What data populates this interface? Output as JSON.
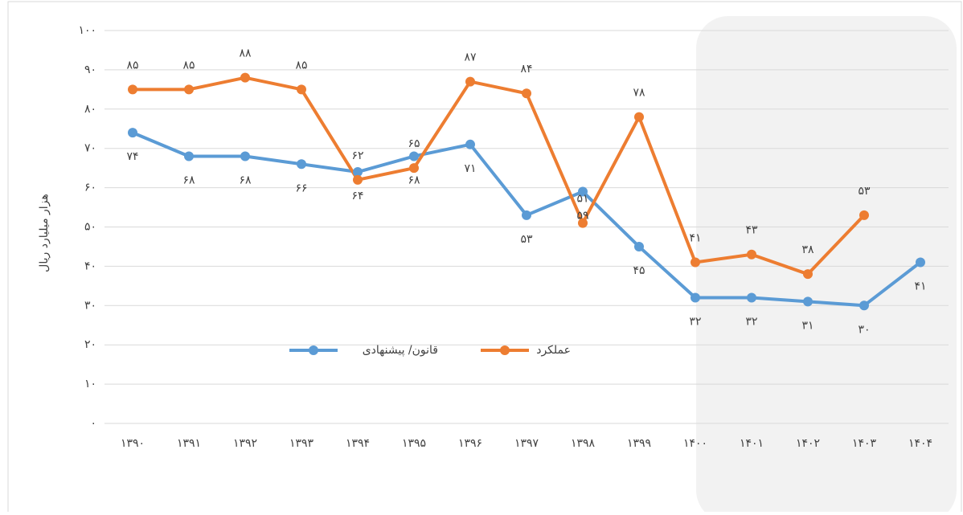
{
  "chart_data": {
    "type": "line",
    "y_label": "هزار میلیارد ریال",
    "categories": [
      "۱۳۹۰",
      "۱۳۹۱",
      "۱۳۹۲",
      "۱۳۹۳",
      "۱۳۹۴",
      "۱۳۹۵",
      "۱۳۹۶",
      "۱۳۹۷",
      "۱۳۹۸",
      "۱۳۹۹",
      "۱۴۰۰",
      "۱۴۰۱",
      "۱۴۰۲",
      "۱۴۰۳",
      "۱۴۰۴"
    ],
    "series": [
      {
        "name": "قانون/ پیشنهادی",
        "color": "#5b9bd5",
        "values": [
          74,
          68,
          68,
          66,
          64,
          68,
          71,
          53,
          59,
          45,
          32,
          32,
          31,
          30,
          41
        ],
        "value_labels": [
          "۷۴",
          "۶۸",
          "۶۸",
          "۶۶",
          "۶۴",
          "۶۸",
          "۷۱",
          "۵۳",
          "۵۹",
          "۴۵",
          "۳۲",
          "۳۲",
          "۳۱",
          "۳۰",
          "۴۱"
        ]
      },
      {
        "name": "عملکرد",
        "color": "#ed7d31",
        "values": [
          85,
          85,
          88,
          85,
          62,
          65,
          87,
          84,
          51,
          78,
          41,
          43,
          38,
          53,
          null
        ],
        "value_labels": [
          "۸۵",
          "۸۵",
          "۸۸",
          "۸۵",
          "۶۲",
          "۶۵",
          "۸۷",
          "۸۴",
          "۵۱",
          "۷۸",
          "۴۱",
          "۴۳",
          "۳۸",
          "۵۳",
          null
        ]
      }
    ],
    "ylim": [
      0,
      100
    ],
    "yticks": [
      {
        "value": 0,
        "label": "۰"
      },
      {
        "value": 10,
        "label": "۱۰"
      },
      {
        "value": 20,
        "label": "۲۰"
      },
      {
        "value": 30,
        "label": "۳۰"
      },
      {
        "value": 40,
        "label": "۴۰"
      },
      {
        "value": 50,
        "label": "۵۰"
      },
      {
        "value": 60,
        "label": "۶۰"
      },
      {
        "value": 70,
        "label": "۷۰"
      },
      {
        "value": 80,
        "label": "۸۰"
      },
      {
        "value": 90,
        "label": "۹۰"
      },
      {
        "value": 100,
        "label": "۱۰۰"
      }
    ],
    "grid": true
  }
}
